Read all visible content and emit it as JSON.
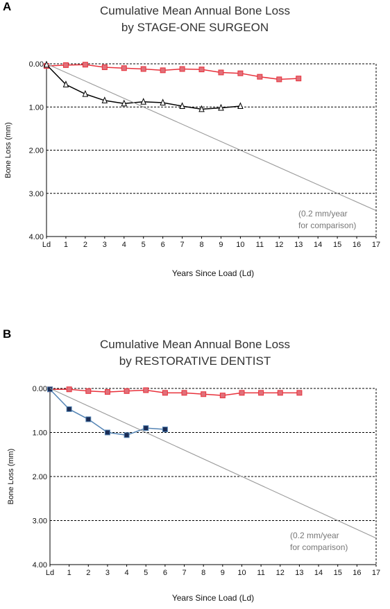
{
  "chart_data": [
    {
      "type": "line",
      "panel_letter": "A",
      "title": "Cumulative Mean Annual Bone Loss",
      "subtitle": "by STAGE-ONE SURGEON",
      "xlabel": "Years Since Load (Ld)",
      "ylabel": "Bone Loss (mm)",
      "x_tick_labels": [
        "Ld",
        "1",
        "2",
        "3",
        "4",
        "5",
        "6",
        "7",
        "8",
        "9",
        "10",
        "11",
        "12",
        "13",
        "14",
        "15",
        "16",
        "17"
      ],
      "y_tick_labels": [
        "0.00",
        "1.00",
        "2.00",
        "3.00",
        "4.00"
      ],
      "xlim": [
        0,
        17
      ],
      "ylim": [
        0,
        4
      ],
      "y_inverted": true,
      "grid": "horizontal dashed",
      "annotation": [
        "(0.2 mm/year",
        "for comparison)"
      ],
      "series": [
        {
          "marker": "square",
          "color": "#e8303a",
          "marker_fill": "#e0707a",
          "x": [
            0,
            1,
            2,
            3,
            4,
            5,
            6,
            7,
            8,
            9,
            10,
            11,
            12,
            13
          ],
          "y": [
            0.05,
            0.03,
            0.02,
            0.08,
            0.1,
            0.12,
            0.15,
            0.12,
            0.13,
            0.2,
            0.22,
            0.3,
            0.36,
            0.34
          ]
        },
        {
          "marker": "triangle",
          "color": "#000000",
          "marker_fill": "#ffffff",
          "x": [
            0,
            1,
            2,
            3,
            4,
            5,
            6,
            7,
            8,
            9,
            10
          ],
          "y": [
            0.02,
            0.48,
            0.7,
            0.85,
            0.92,
            0.88,
            0.9,
            0.98,
            1.05,
            1.02,
            0.98
          ]
        },
        {
          "marker": "none",
          "color": "#999999",
          "x": [
            0,
            17
          ],
          "y": [
            0,
            3.4
          ]
        }
      ]
    },
    {
      "type": "line",
      "panel_letter": "B",
      "title": "Cumulative Mean Annual Bone Loss",
      "subtitle": "by RESTORATIVE DENTIST",
      "xlabel": "Years Since Load (Ld)",
      "ylabel": "Bone Loss (mm)",
      "x_tick_labels": [
        "Ld",
        "1",
        "2",
        "3",
        "4",
        "5",
        "6",
        "7",
        "8",
        "9",
        "10",
        "11",
        "12",
        "13",
        "14",
        "15",
        "16",
        "17"
      ],
      "y_tick_labels": [
        "0.00",
        "1.00",
        "2.00",
        "3.00",
        "4.00"
      ],
      "xlim": [
        0,
        17
      ],
      "ylim": [
        0,
        4
      ],
      "y_inverted": true,
      "grid": "horizontal dashed",
      "annotation": [
        "(0.2 mm/year",
        "for comparison)"
      ],
      "series": [
        {
          "marker": "square",
          "color": "#e8303a",
          "marker_fill": "#e0707a",
          "x": [
            0,
            1,
            2,
            3,
            4,
            5,
            6,
            7,
            8,
            9,
            10,
            11,
            12,
            13
          ],
          "y": [
            0.02,
            0.02,
            0.06,
            0.08,
            0.06,
            0.04,
            0.1,
            0.1,
            0.13,
            0.16,
            0.1,
            0.1,
            0.1,
            0.1
          ]
        },
        {
          "marker": "square",
          "color": "#5585b5",
          "marker_fill": "#1a2c55",
          "x": [
            0,
            1,
            2,
            3,
            4,
            5,
            6
          ],
          "y": [
            0.02,
            0.47,
            0.7,
            1.0,
            1.06,
            0.9,
            0.93
          ]
        },
        {
          "marker": "none",
          "color": "#999999",
          "x": [
            0,
            17
          ],
          "y": [
            0,
            3.4
          ]
        }
      ]
    }
  ]
}
